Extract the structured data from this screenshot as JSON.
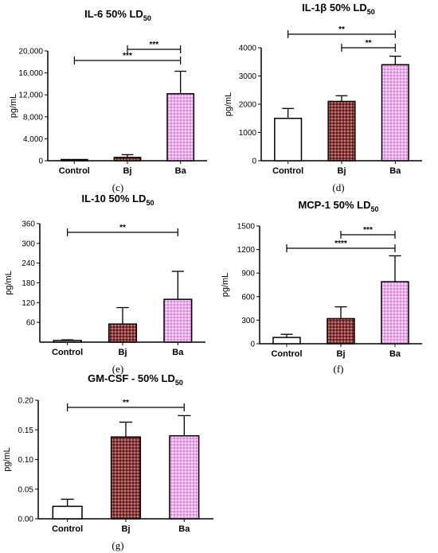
{
  "colors": {
    "control_fill": "#ffffff",
    "bj_fill": "#8b3a3a",
    "ba_fill": "#f0a8f0",
    "outline": "#000000"
  },
  "chart_data": [
    {
      "id": "c",
      "type": "bar",
      "panel_label": "(c)",
      "title_main": "IL-6 50% LD",
      "title_sub": "50",
      "ylabel": "pg/mL",
      "ylim": [
        0,
        20000
      ],
      "yticks": [
        0,
        4000,
        8000,
        12000,
        16000,
        20000
      ],
      "ytick_labels": [
        "0",
        "4,000",
        "8,000",
        "12,000",
        "16,000",
        "20,000"
      ],
      "categories": [
        "Control",
        "Bj",
        "Ba"
      ],
      "values": [
        0,
        600,
        12200
      ],
      "errors": [
        0,
        500,
        4100
      ],
      "significance": [
        {
          "from": 1,
          "to": 2,
          "label": "***"
        },
        {
          "from": 0,
          "to": 2,
          "label": "***"
        }
      ]
    },
    {
      "id": "d",
      "type": "bar",
      "panel_label": "(d)",
      "title_main": "IL-1β 50% LD",
      "title_sub": "50",
      "ylabel": "pg/mL",
      "ylim": [
        0,
        4000
      ],
      "yticks": [
        0,
        1000,
        2000,
        3000,
        4000
      ],
      "ytick_labels": [
        "0",
        "1000",
        "2000",
        "3000",
        "4000"
      ],
      "categories": [
        "Control",
        "Bj",
        "Ba"
      ],
      "values": [
        1500,
        2100,
        3400
      ],
      "errors": [
        350,
        200,
        300
      ],
      "significance": [
        {
          "from": 0,
          "to": 2,
          "label": "**"
        },
        {
          "from": 1,
          "to": 2,
          "label": "**"
        }
      ]
    },
    {
      "id": "e",
      "type": "bar",
      "panel_label": "(e)",
      "title_main": "IL-10 50% LD",
      "title_sub": "50",
      "ylabel": "pg/mL",
      "ylim": [
        0,
        360
      ],
      "yticks": [
        60,
        120,
        180,
        240,
        300,
        360
      ],
      "ytick_labels": [
        "60",
        "120",
        "180",
        "240",
        "300",
        "360"
      ],
      "categories": [
        "Control",
        "Bj",
        "Ba"
      ],
      "values": [
        5,
        55,
        130
      ],
      "errors": [
        2,
        50,
        85
      ],
      "significance": [
        {
          "from": 0,
          "to": 2,
          "label": "**"
        }
      ]
    },
    {
      "id": "f",
      "type": "bar",
      "panel_label": "(f)",
      "title_main": "MCP-1 50% LD",
      "title_sub": "50",
      "ylabel": "pg/mL",
      "ylim": [
        0,
        1500
      ],
      "yticks": [
        0,
        300,
        600,
        900,
        1200,
        1500
      ],
      "ytick_labels": [
        "0",
        "300",
        "600",
        "900",
        "1200",
        "1500"
      ],
      "categories": [
        "Control",
        "Bj",
        "Ba"
      ],
      "values": [
        80,
        320,
        790
      ],
      "errors": [
        40,
        150,
        330
      ],
      "significance": [
        {
          "from": 1,
          "to": 2,
          "label": "***"
        },
        {
          "from": 0,
          "to": 2,
          "label": "****"
        }
      ]
    },
    {
      "id": "g",
      "type": "bar",
      "panel_label": "(g)",
      "title_main": "GM-CSF - 50% LD",
      "title_sub": "50",
      "ylabel": "pg/mL",
      "ylim": [
        0,
        0.2
      ],
      "yticks": [
        0,
        0.05,
        0.1,
        0.15,
        0.2
      ],
      "ytick_labels": [
        "0.00",
        "0.05",
        "0.10",
        "0.15",
        "0.20"
      ],
      "categories": [
        "Control",
        "Bj",
        "Ba"
      ],
      "values": [
        0.021,
        0.138,
        0.14
      ],
      "errors": [
        0.012,
        0.025,
        0.034
      ],
      "significance": [
        {
          "from": 0,
          "to": 2,
          "label": "**"
        }
      ]
    }
  ]
}
